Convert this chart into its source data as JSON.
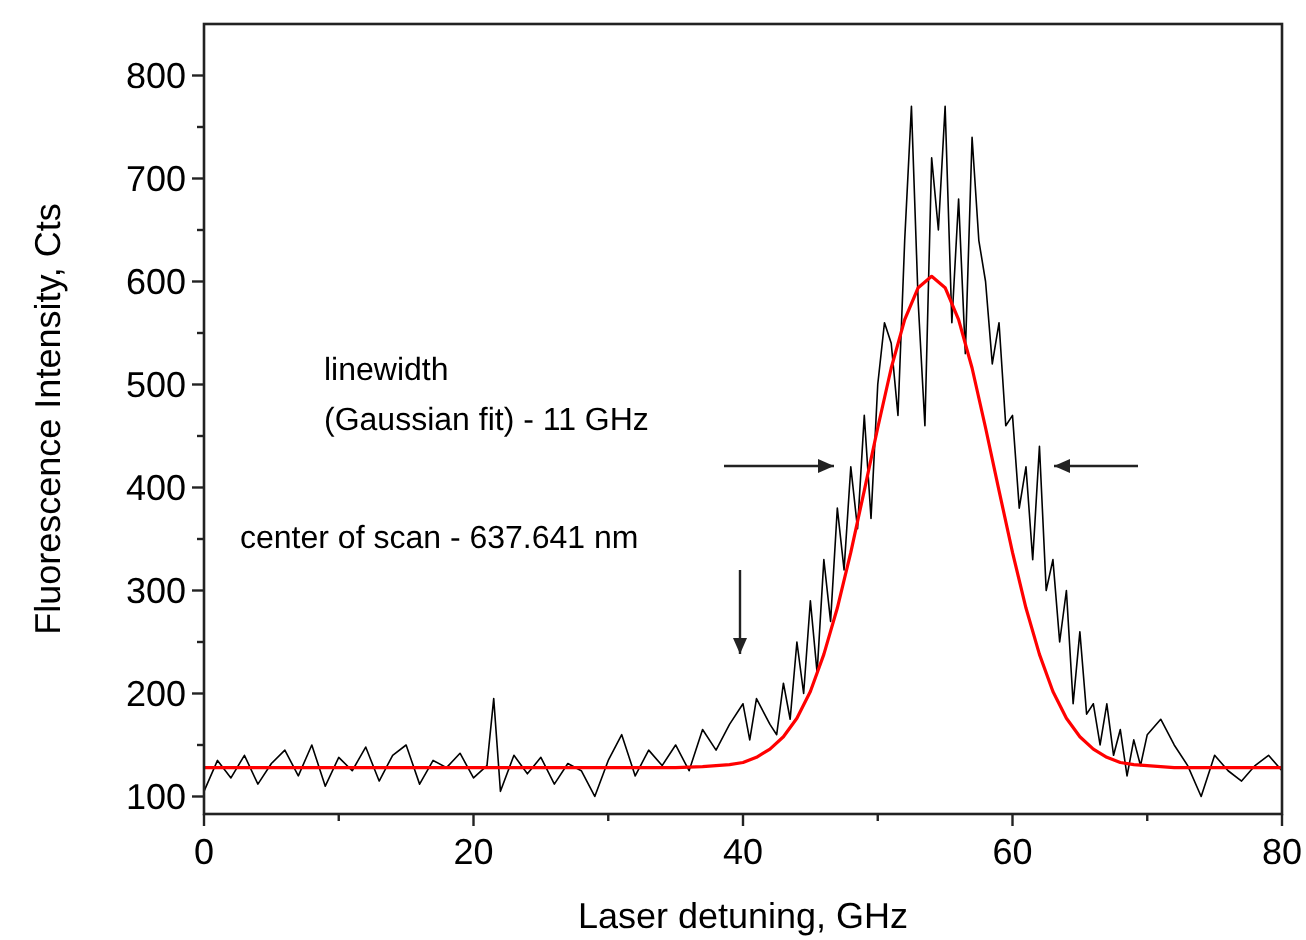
{
  "chart_data": {
    "type": "line",
    "xlabel": "Laser detuning, GHz",
    "ylabel": "Fluorescence Intensity, Cts",
    "xlim": [
      0,
      80
    ],
    "ylim": [
      83,
      850
    ],
    "xticks": [
      0,
      {
        "value": 10,
        "label": null
      },
      20,
      {
        "value": 30,
        "label": null
      },
      40,
      {
        "value": 50,
        "label": null
      },
      60,
      {
        "value": 70,
        "label": null
      },
      80
    ],
    "yticks": [
      100,
      {
        "value": 150,
        "label": null
      },
      200,
      {
        "value": 250,
        "label": null
      },
      300,
      {
        "value": 350,
        "label": null
      },
      400,
      {
        "value": 450,
        "label": null
      },
      500,
      {
        "value": 550,
        "label": null
      },
      600,
      {
        "value": 650,
        "label": null
      },
      700,
      {
        "value": 750,
        "label": null
      },
      800
    ],
    "grid": false,
    "marker": "none",
    "line_style": "solid",
    "series": [
      {
        "color": "#000000",
        "x": [
          0,
          1,
          2,
          3,
          4,
          5,
          6,
          7,
          8,
          9,
          10,
          11,
          12,
          13,
          14,
          15,
          16,
          17,
          18,
          19,
          20,
          21,
          21.5,
          22,
          23,
          24,
          25,
          26,
          27,
          28,
          29,
          30,
          31,
          32,
          33,
          34,
          35,
          36,
          37,
          38,
          39,
          40,
          40.5,
          41,
          42,
          42.5,
          43,
          43.5,
          44,
          44.5,
          45,
          45.5,
          46,
          46.5,
          47,
          47.5,
          48,
          48.5,
          49,
          49.5,
          50,
          50.5,
          51,
          51.5,
          52,
          52.5,
          53,
          53.5,
          54,
          54.5,
          55,
          55.5,
          56,
          56.5,
          57,
          57.5,
          58,
          58.5,
          59,
          59.5,
          60,
          60.5,
          61,
          61.5,
          62,
          62.5,
          63,
          63.5,
          64,
          64.5,
          65,
          65.5,
          66,
          66.5,
          67,
          67.5,
          68,
          68.5,
          69,
          69.5,
          70,
          71,
          72,
          73,
          74,
          75,
          76,
          77,
          78,
          79,
          80
        ],
        "values": [
          105,
          135,
          118,
          140,
          112,
          132,
          145,
          120,
          150,
          110,
          138,
          125,
          148,
          115,
          140,
          150,
          112,
          135,
          128,
          142,
          118,
          130,
          195,
          105,
          140,
          122,
          138,
          112,
          132,
          125,
          100,
          135,
          160,
          120,
          145,
          130,
          150,
          125,
          165,
          145,
          170,
          190,
          155,
          195,
          170,
          160,
          210,
          175,
          250,
          200,
          290,
          220,
          330,
          270,
          380,
          320,
          420,
          360,
          470,
          370,
          500,
          560,
          540,
          470,
          640,
          770,
          580,
          460,
          720,
          650,
          770,
          560,
          680,
          530,
          740,
          640,
          600,
          520,
          560,
          460,
          470,
          380,
          420,
          330,
          440,
          300,
          330,
          250,
          300,
          190,
          260,
          180,
          190,
          150,
          190,
          140,
          165,
          120,
          155,
          130,
          160,
          175,
          150,
          130,
          100,
          140,
          125,
          115,
          130,
          140,
          125
        ]
      },
      {
        "type": "line",
        "color": "#ff0000",
        "x": [
          0,
          35,
          37,
          38,
          39,
          40,
          41,
          42,
          43,
          44,
          45,
          46,
          47,
          48,
          49,
          50,
          51,
          52,
          53,
          54,
          55,
          56,
          57,
          58,
          59,
          60,
          61,
          62,
          63,
          64,
          65,
          66,
          67,
          68,
          69,
          70,
          71,
          72,
          73,
          75,
          80
        ],
        "values": [
          128,
          128,
          129,
          130,
          131,
          133,
          138,
          146,
          158,
          176,
          202,
          238,
          283,
          337,
          397,
          458,
          516,
          563,
          594,
          605,
          594,
          563,
          516,
          458,
          397,
          337,
          283,
          238,
          202,
          176,
          158,
          146,
          138,
          133,
          131,
          130,
          129,
          128,
          128,
          128,
          128
        ]
      }
    ],
    "annotations": [
      "linewidth\n(Gaussian fit) - 11 GHz",
      "center of scan - 637.641 nm"
    ]
  }
}
